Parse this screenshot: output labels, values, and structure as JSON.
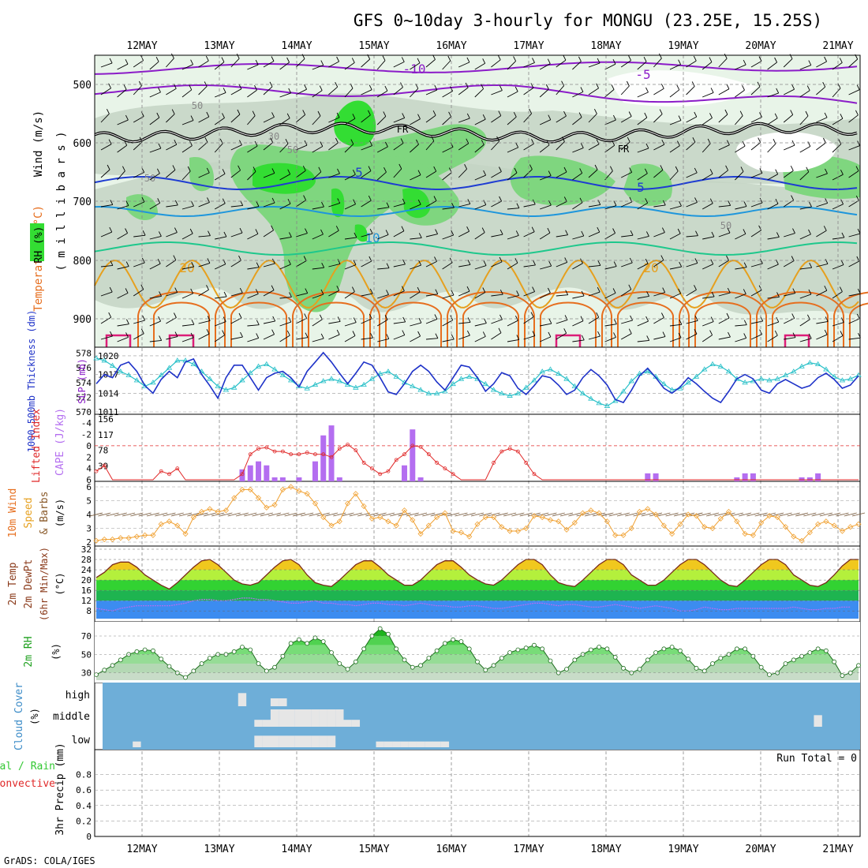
{
  "title": "GFS 0~10day 3-hourly for MONGU (23.25E, 15.25S)",
  "footer": "GrADS: COLA/IGES",
  "days": [
    "12MAY",
    "13MAY",
    "14MAY",
    "15MAY",
    "16MAY",
    "17MAY",
    "18MAY",
    "19MAY",
    "20MAY",
    "21MAY"
  ],
  "colors": {
    "rh_light": "#e8f4e8",
    "rh_gray": "#c4d4c4",
    "rh_mid": "#7fd67f",
    "rh_dark": "#33dd33",
    "temp_purple": "#8b1cc8",
    "temp_blue": "#1e3cd2",
    "temp_lblue": "#1e96dc",
    "temp_teal": "#1ec88c",
    "temp_gold": "#e6a01e",
    "temp_orange": "#e66e1e",
    "temp_magenta": "#dc1e78",
    "slp": "#1e32c8",
    "thickness": "#28c0c8",
    "li": "#e02828",
    "cape": "#b46ef0",
    "wind": "#f0a030",
    "rh2m": "#33c833",
    "cloud_bg": "#6eaed8",
    "cloud": "#e6e6e6"
  },
  "panels": {
    "upper": {
      "label_wind": "Wind (m/s)",
      "label_temp": "Temperature (°C)",
      "label_rh": "RH (%)",
      "label_mb": "( m i l l i b a r s )",
      "ticks": [
        "500",
        "600",
        "700",
        "800",
        "900"
      ],
      "contour_labels": [
        "-10",
        "-5",
        "FR",
        "FR",
        "5",
        "5",
        "10",
        "20",
        "20",
        "50",
        "30",
        "50",
        "50",
        "50"
      ]
    },
    "slp": {
      "label_thk": "1000-500mb Thickness (dm)",
      "label_slp": "SLP (mb)",
      "left_ticks": [
        "578",
        "576",
        "574",
        "572",
        "570"
      ],
      "right_ticks": [
        "1020",
        "1017",
        "1014",
        "1011"
      ]
    },
    "li": {
      "label_li": "Lifted Index",
      "label_cape": "CAPE (J/kg)",
      "left_ticks": [
        "-4",
        "-2",
        "0",
        "2",
        "4",
        "6"
      ],
      "right_ticks": [
        "156",
        "117",
        "78",
        "39"
      ]
    },
    "wind10": {
      "label1": "10m Wind",
      "label2": "Speed",
      "label3": "& Barbs",
      "ticks": [
        "6",
        "5",
        "4",
        "3",
        "2"
      ],
      "unit": "(m/s)"
    },
    "temp2m": {
      "label1": "2m Temp",
      "label2": "2m DewPt",
      "label3": "(6hr Min/Max)",
      "unit": "(°C)",
      "ticks": [
        "32",
        "28",
        "24",
        "20",
        "16",
        "12",
        "8"
      ]
    },
    "rh2m": {
      "label": "2m RH",
      "unit": "(%)",
      "ticks": [
        "70",
        "50",
        "30"
      ]
    },
    "cloud": {
      "label": "Cloud Cover",
      "unit": "(%)",
      "levels": [
        "high",
        "middle",
        "low"
      ]
    },
    "precip": {
      "label1": "Total / Rain",
      "label2": "Convective",
      "label3": "3hr Precip (mm)",
      "run_total": "Run Total = 0",
      "ticks": [
        "0.8",
        "0.6",
        "0.4",
        "0.2",
        "0"
      ]
    }
  },
  "chart_data": [
    {
      "type": "line",
      "title": "1000-500mb Thickness (dm) / SLP (mb)",
      "x_unit": "3-hourly steps from 11MAY 12Z",
      "series": [
        {
          "name": "SLP (mb)",
          "axis": "right",
          "ylim": [
            1011,
            1021
          ],
          "values": [
            1015.5,
            1017,
            1016.5,
            1018.5,
            1019,
            1017.5,
            1015.2,
            1014,
            1016.2,
            1017.5,
            1016.5,
            1019,
            1019.5,
            1017,
            1015.2,
            1013.2,
            1016.5,
            1018.5,
            1018.5,
            1016.5,
            1014.5,
            1016.5,
            1017.2,
            1017.5,
            1016.5,
            1015,
            1017.5,
            1019,
            1020.5,
            1019,
            1017.2,
            1015.5,
            1017.2,
            1019,
            1018.5,
            1016.5,
            1014.2,
            1013.8,
            1015.5,
            1017.5,
            1018.5,
            1017.5,
            1015.8,
            1014.5,
            1016.5,
            1018.5,
            1018.2,
            1016.5,
            1014.3,
            1015.5,
            1017.3,
            1016.8,
            1014.8,
            1013.8,
            1015.2,
            1016.8,
            1016.5,
            1015.3,
            1013.8,
            1014.5,
            1016.5,
            1017.8,
            1016.8,
            1015.3,
            1013,
            1012.5,
            1014.5,
            1016.8,
            1018,
            1016.5,
            1014.8,
            1014,
            1015,
            1016.5,
            1015.5,
            1014.3,
            1013.2,
            1012.5,
            1014.3,
            1016.3,
            1017,
            1016.3,
            1014.5,
            1014,
            1015.5,
            1016.2,
            1015.5,
            1014.8,
            1015.2,
            1016.5,
            1017.2,
            1016.2,
            1014.8,
            1015.3,
            1016.8
          ]
        },
        {
          "name": "Thickness (dm)",
          "axis": "left",
          "ylim": [
            570,
            578.5
          ],
          "values": [
            577.3,
            577,
            576.3,
            575.5,
            575,
            574.3,
            573.5,
            574,
            575,
            576,
            577,
            577,
            576.5,
            575.5,
            574.5,
            573.5,
            573,
            573.3,
            574.3,
            575.3,
            576.2,
            576.5,
            575.8,
            575,
            574.3,
            573.5,
            573.2,
            573.7,
            574.2,
            574.5,
            574.2,
            573.7,
            573.3,
            573.7,
            574.5,
            575.2,
            575.5,
            574.8,
            574,
            573.5,
            573,
            572.5,
            572.5,
            572.8,
            573.8,
            574.5,
            574.8,
            574.5,
            573.8,
            573,
            572.5,
            572.2,
            572.5,
            573.3,
            574.3,
            575.5,
            575.8,
            575.2,
            574.5,
            573.5,
            572.5,
            571.8,
            571.2,
            570.8,
            571.5,
            572.8,
            574.2,
            575.2,
            575.5,
            574.8,
            573.8,
            573,
            573.2,
            574,
            574.8,
            575.8,
            576.5,
            576.2,
            575.5,
            574.5,
            574,
            574.2,
            574.5,
            574.3,
            574.5,
            575,
            575.5,
            576.2,
            576.7,
            576.5,
            575.8,
            574.8,
            574.3,
            574.5,
            575
          ]
        }
      ]
    },
    {
      "type": "bar",
      "title": "Lifted Index / CAPE (J/kg)",
      "li_ylim": [
        6,
        -5
      ],
      "cape_ylim": [
        0,
        156
      ],
      "li_values": [
        4.5,
        3.5,
        6.5,
        6.5,
        6.5,
        6.5,
        6.5,
        6.5,
        4.5,
        5,
        4,
        6.5,
        6.5,
        6.5,
        6.5,
        6.5,
        6.5,
        6.5,
        5,
        1.5,
        0.5,
        0.3,
        1,
        1,
        1.5,
        1.5,
        1.2,
        1.5,
        1.5,
        2,
        0.5,
        -0.2,
        0.8,
        3,
        4,
        5,
        4.5,
        2.5,
        1.5,
        0,
        0.2,
        1.5,
        3,
        4,
        5,
        6.5,
        6.5,
        6.5,
        6.5,
        3,
        1,
        0.5,
        1,
        3,
        5,
        6.5,
        6.5,
        6.5,
        6.5,
        6.5,
        6.5,
        6.5,
        6.5,
        6.5,
        6.5,
        6.5,
        6.5,
        6.5,
        6.5,
        6.5,
        6.5,
        6.5,
        6.5,
        6.5,
        6.5,
        6.5,
        6.5,
        6.5,
        6.5,
        6.5,
        6.5,
        6.5,
        6.5,
        6.5,
        6.5,
        6.5,
        6.5,
        6.5,
        6.5,
        6.5,
        6.5,
        6.5,
        6.5,
        6.5,
        6.5
      ],
      "cape_bars": [
        [
          18,
          30
        ],
        [
          19,
          40
        ],
        [
          20,
          50
        ],
        [
          21,
          40
        ],
        [
          22,
          10
        ],
        [
          23,
          10
        ],
        [
          25,
          10
        ],
        [
          27,
          50
        ],
        [
          28,
          115
        ],
        [
          29,
          140
        ],
        [
          30,
          10
        ],
        [
          38,
          40
        ],
        [
          39,
          130
        ],
        [
          40,
          10
        ],
        [
          68,
          20
        ],
        [
          69,
          20
        ],
        [
          79,
          10
        ],
        [
          80,
          20
        ],
        [
          81,
          20
        ],
        [
          87,
          10
        ],
        [
          88,
          10
        ],
        [
          89,
          20
        ]
      ]
    },
    {
      "type": "line",
      "title": "10m Wind Speed (m/s)",
      "ylim": [
        2,
        6
      ],
      "values": [
        2.1,
        2.2,
        2.2,
        2.3,
        2.3,
        2.4,
        2.5,
        2.5,
        3.3,
        3.5,
        3.2,
        2.6,
        3.8,
        4.2,
        4.4,
        4.2,
        4.3,
        5.2,
        5.8,
        5.8,
        5.2,
        4.5,
        4.7,
        5.8,
        6,
        5.7,
        5.5,
        4.8,
        3.8,
        3.2,
        3.5,
        4.8,
        5.5,
        4.6,
        3.7,
        3.8,
        3.5,
        3.2,
        4.3,
        3.6,
        2.6,
        3.2,
        3.8,
        4.1,
        2.8,
        2.7,
        2.4,
        3.3,
        3.8,
        3.8,
        3.1,
        2.8,
        2.8,
        3,
        3.9,
        3.8,
        3.6,
        3.5,
        2.9,
        3.4,
        4.1,
        4.3,
        4.1,
        3.5,
        2.5,
        2.5,
        3,
        4.2,
        4.4,
        4,
        3.2,
        2.6,
        3.3,
        4,
        3.9,
        3.1,
        3,
        3.7,
        4.2,
        3.5,
        2.6,
        2.5,
        3.4,
        3.9,
        3.8,
        3.1,
        2.4,
        2.1,
        2.7,
        3.3,
        3.5,
        3.2,
        2.8,
        3.1,
        3.3
      ]
    },
    {
      "type": "area",
      "title": "2m Temp / 2m DewPt (°C)",
      "ylim": [
        5,
        32
      ],
      "temp_values": [
        21,
        23,
        26,
        27,
        27,
        25,
        22,
        20,
        18,
        16.5,
        19,
        22,
        25,
        27.5,
        28,
        26,
        23,
        20,
        18.5,
        18,
        19,
        22,
        25,
        27.5,
        28,
        26,
        22,
        19,
        18,
        17.5,
        20,
        23,
        26,
        27.5,
        27.5,
        25,
        22,
        20,
        18,
        18,
        20,
        23,
        26,
        27.5,
        27.5,
        25,
        22,
        20,
        18.5,
        18,
        20,
        23,
        26,
        28,
        28,
        26,
        22,
        19,
        18,
        17.5,
        20,
        23,
        26,
        28,
        28,
        26,
        22,
        20,
        18,
        18,
        20,
        23,
        26,
        28,
        28,
        26,
        23,
        20,
        18,
        17.5,
        20,
        23,
        26,
        28,
        28,
        26,
        22,
        20,
        18,
        17.5,
        19,
        22,
        25.5,
        28,
        28
      ],
      "dewpt_values": [
        9,
        8.5,
        8,
        9,
        9.5,
        10,
        10,
        10,
        10,
        10,
        10.5,
        11,
        12,
        12.5,
        12.5,
        12,
        12,
        12.5,
        13,
        13,
        12.5,
        12.5,
        12,
        11.5,
        11,
        11,
        11.5,
        12,
        11,
        11,
        10.5,
        10.5,
        10,
        10.5,
        11,
        11,
        10.5,
        10.5,
        10,
        10.5,
        11,
        10.5,
        10,
        10,
        9.5,
        9.5,
        10,
        10,
        9.5,
        9,
        9,
        9.5,
        10,
        10.5,
        11,
        11,
        10.5,
        10,
        10.5,
        10.5,
        10,
        9.5,
        9.5,
        10,
        10.5,
        10,
        9.5,
        9,
        9.5,
        10,
        9.5,
        9,
        8,
        8,
        8.5,
        9.5,
        9,
        8.5,
        8.5,
        9,
        9,
        9,
        9,
        9,
        9,
        9,
        9.5,
        9,
        8.5,
        8.5,
        9,
        9,
        9.5,
        9.5
      ]
    },
    {
      "type": "area",
      "title": "2m RH (%)",
      "ylim": [
        22,
        82
      ],
      "values": [
        28,
        33,
        38,
        44,
        50,
        53,
        55,
        54,
        45,
        37,
        30,
        25,
        32,
        40,
        46,
        50,
        50,
        53,
        58,
        55,
        40,
        32,
        36,
        48,
        62,
        66,
        62,
        68,
        64,
        52,
        40,
        34,
        42,
        56,
        70,
        78,
        72,
        56,
        44,
        36,
        38,
        46,
        54,
        62,
        66,
        64,
        56,
        42,
        33,
        38,
        46,
        52,
        55,
        57,
        60,
        56,
        43,
        30,
        34,
        44,
        50,
        55,
        58,
        56,
        47,
        35,
        30,
        34,
        44,
        52,
        56,
        58,
        54,
        45,
        35,
        32,
        40,
        46,
        50,
        56,
        56,
        48,
        36,
        28,
        30,
        40,
        44,
        48,
        52,
        56,
        54,
        42,
        27,
        30,
        38
      ]
    },
    {
      "type": "heatmap",
      "title": "Cloud Cover (%)",
      "rows": [
        "high",
        "middle",
        "low"
      ],
      "cells": [
        {
          "level": "high",
          "i": [
            18
          ],
          "pct": 25
        },
        {
          "level": "high",
          "i": [
            22,
            23
          ],
          "pct": 15
        },
        {
          "level": "middle",
          "i": [
            22,
            23,
            24,
            25,
            26,
            27,
            28,
            29,
            30
          ],
          "pct": 30
        },
        {
          "level": "middle",
          "i": [
            20,
            21,
            31,
            32
          ],
          "pct": 12
        },
        {
          "level": "low",
          "i": [
            20,
            21,
            22,
            23,
            24,
            25,
            26,
            27,
            28,
            29
          ],
          "pct": 20
        },
        {
          "level": "low",
          "i": [
            35,
            36,
            37,
            38,
            39,
            40,
            41,
            42,
            43
          ],
          "pct": 10
        },
        {
          "level": "low",
          "i": [
            5
          ],
          "pct": 10
        },
        {
          "level": "middle",
          "i": [
            89
          ],
          "pct": 20
        }
      ]
    },
    {
      "type": "bar",
      "title": "3hr Precip (mm)",
      "ylim": [
        0,
        1
      ],
      "values": [],
      "run_total": 0
    }
  ]
}
